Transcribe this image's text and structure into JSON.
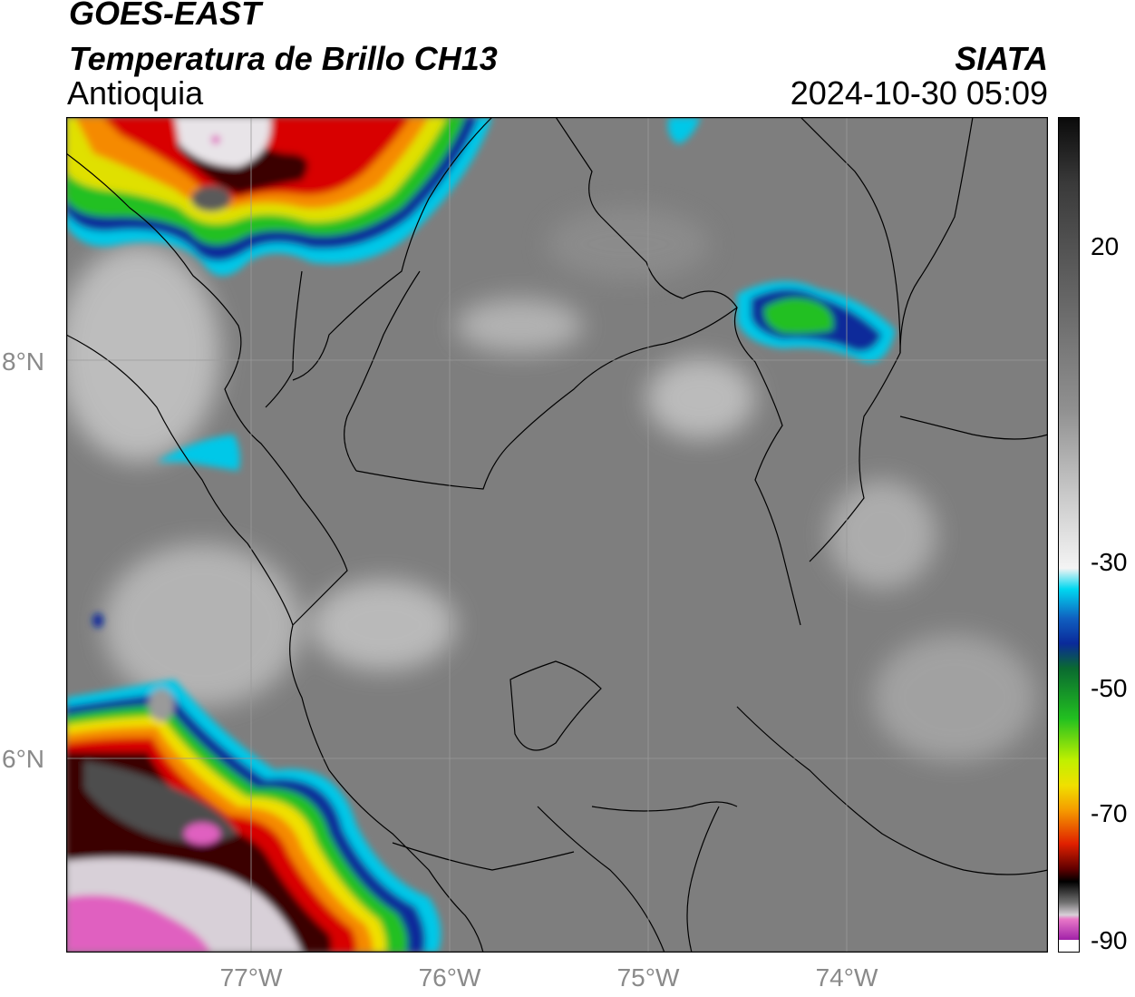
{
  "header": {
    "satellite": "GOES-EAST",
    "product": "Temperatura de Brillo CH13",
    "region": "Antioquia",
    "brand": "SIATA",
    "timestamp": "2024-10-30 05:09"
  },
  "map": {
    "lat_labels": [
      "8°N",
      "6°N"
    ],
    "lon_labels": [
      "77°W",
      "76°W",
      "75°W",
      "74°W"
    ],
    "gridline_color": "#9a9a9a"
  },
  "colorbar": {
    "tick_labels": [
      "20",
      "-30",
      "-50",
      "-70",
      "-90"
    ],
    "ticks": [
      20,
      -30,
      -50,
      -70,
      -90
    ],
    "range": [
      -90,
      30
    ],
    "colors": {
      "warm_gray": "#7a7a7a",
      "cloud_white": "#f0f0f0",
      "cyan": "#00d8f0",
      "blue": "#0a2a9a",
      "green": "#22c020",
      "yellow": "#f0f000",
      "orange": "#f59a00",
      "red": "#e00000",
      "dark_red": "#400000",
      "black": "#000000",
      "pink": "#e060c0",
      "purple": "#8a10a0"
    }
  }
}
